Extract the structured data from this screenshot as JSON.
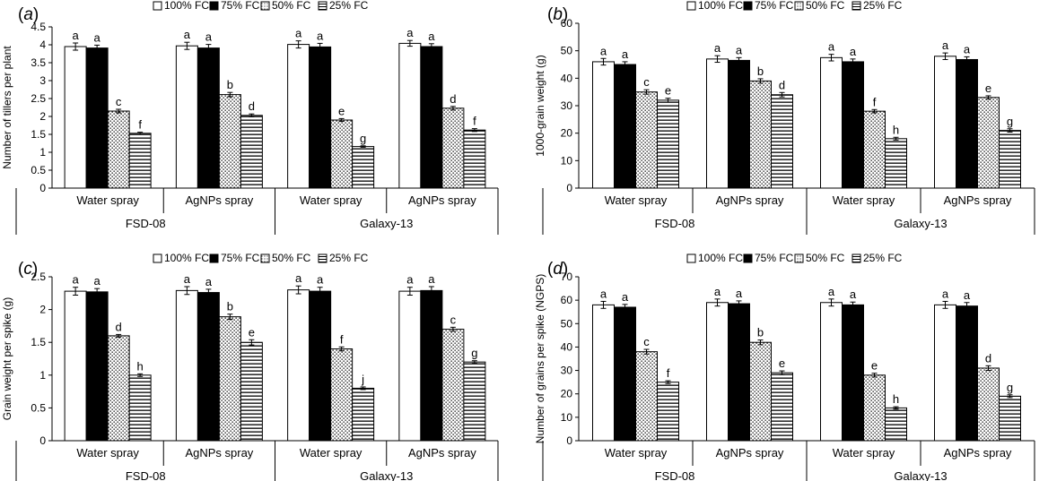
{
  "legend_labels": [
    "100% FC",
    "75% FC",
    "50% FC",
    "25% FC"
  ],
  "group_labels": [
    "Water spray",
    "AgNPs spray",
    "Water spray",
    "AgNPs spray"
  ],
  "cultivar_labels": [
    "FSD-08",
    "Galaxy-13"
  ],
  "chart_data": [
    {
      "type": "bar",
      "panel_label": "(a)",
      "ylabel": "Number of tillers per plant",
      "ylim": [
        0,
        4.5
      ],
      "yticks": [
        "0",
        "0.5",
        "1",
        "1.5",
        "2",
        "2.5",
        "3",
        "3.5",
        "4",
        "4.5"
      ],
      "yticks_values": [
        0,
        0.5,
        1,
        1.5,
        2,
        2.5,
        3,
        3.5,
        4,
        4.5
      ],
      "series": [
        {
          "name": "100% FC",
          "values": [
            3.95,
            3.97,
            4.01,
            4.04
          ],
          "errors": [
            0.1,
            0.1,
            0.1,
            0.08
          ],
          "letters": [
            "a",
            "a",
            "a",
            "a"
          ]
        },
        {
          "name": "75% FC",
          "values": [
            3.91,
            3.91,
            3.94,
            3.95
          ],
          "errors": [
            0.08,
            0.1,
            0.1,
            0.08
          ],
          "letters": [
            "a",
            "a",
            "a",
            "a"
          ]
        },
        {
          "name": "50% FC",
          "values": [
            2.15,
            2.61,
            1.9,
            2.23
          ],
          "errors": [
            0.05,
            0.06,
            0.04,
            0.05
          ],
          "letters": [
            "c",
            "b",
            "e",
            "d"
          ]
        },
        {
          "name": "25% FC",
          "values": [
            1.53,
            2.03,
            1.16,
            1.62
          ],
          "errors": [
            0.03,
            0.04,
            0.02,
            0.04
          ],
          "letters": [
            "f",
            "d",
            "g",
            "f"
          ]
        }
      ]
    },
    {
      "type": "bar",
      "panel_label": "(b)",
      "ylabel": "1000-grain weight (g)",
      "ylim": [
        0,
        60
      ],
      "yticks": [
        "0",
        "10",
        "20",
        "30",
        "40",
        "50",
        "60"
      ],
      "yticks_values": [
        0,
        10,
        20,
        30,
        40,
        50,
        60
      ],
      "series": [
        {
          "name": "100% FC",
          "values": [
            46,
            47,
            47.5,
            48
          ],
          "errors": [
            1.2,
            1.2,
            1.2,
            1.2
          ],
          "letters": [
            "a",
            "a",
            "a",
            "a"
          ]
        },
        {
          "name": "75% FC",
          "values": [
            45,
            46.5,
            46,
            46.8
          ],
          "errors": [
            1,
            1,
            1,
            1
          ],
          "letters": [
            "a",
            "a",
            "a",
            "a"
          ]
        },
        {
          "name": "50% FC",
          "values": [
            35,
            39,
            28,
            33
          ],
          "errors": [
            0.8,
            0.8,
            0.6,
            0.6
          ],
          "letters": [
            "c",
            "b",
            "f",
            "e"
          ]
        },
        {
          "name": "25% FC",
          "values": [
            32,
            34,
            18,
            21
          ],
          "errors": [
            0.7,
            0.8,
            0.5,
            0.6
          ],
          "letters": [
            "e",
            "d",
            "h",
            "g"
          ]
        }
      ]
    },
    {
      "type": "bar",
      "panel_label": "(c)",
      "ylabel": "Grain weight per spike (g)",
      "ylim": [
        0,
        2.5
      ],
      "yticks": [
        "0",
        "0.5",
        "1",
        "1.5",
        "2",
        "2.5"
      ],
      "yticks_values": [
        0,
        0.5,
        1,
        1.5,
        2,
        2.5
      ],
      "series": [
        {
          "name": "100% FC",
          "values": [
            2.28,
            2.29,
            2.3,
            2.28
          ],
          "errors": [
            0.06,
            0.06,
            0.06,
            0.06
          ],
          "letters": [
            "a",
            "a",
            "a",
            "a"
          ]
        },
        {
          "name": "75% FC",
          "values": [
            2.27,
            2.26,
            2.28,
            2.29
          ],
          "errors": [
            0.05,
            0.05,
            0.06,
            0.06
          ],
          "letters": [
            "a",
            "a",
            "a",
            "a"
          ]
        },
        {
          "name": "50% FC",
          "values": [
            1.6,
            1.89,
            1.4,
            1.7
          ],
          "errors": [
            0.02,
            0.04,
            0.03,
            0.03
          ],
          "letters": [
            "d",
            "b",
            "f",
            "c"
          ]
        },
        {
          "name": "25% FC",
          "values": [
            1.0,
            1.5,
            0.8,
            1.2
          ],
          "errors": [
            0.02,
            0.04,
            0.02,
            0.02
          ],
          "letters": [
            "h",
            "e",
            "j",
            "g"
          ]
        }
      ]
    },
    {
      "type": "bar",
      "panel_label": "(d)",
      "ylabel": "Number of grains per spike (NGPS)",
      "ylim": [
        0,
        70
      ],
      "yticks": [
        "0",
        "10",
        "20",
        "30",
        "40",
        "50",
        "60",
        "70"
      ],
      "yticks_values": [
        0,
        10,
        20,
        30,
        40,
        50,
        60,
        70
      ],
      "series": [
        {
          "name": "100% FC",
          "values": [
            58,
            59,
            59,
            58
          ],
          "errors": [
            1.5,
            1.5,
            1.5,
            1.5
          ],
          "letters": [
            "a",
            "a",
            "a",
            "a"
          ]
        },
        {
          "name": "75% FC",
          "values": [
            57,
            58.5,
            58,
            57.5
          ],
          "errors": [
            1.2,
            1.2,
            1.2,
            1.5
          ],
          "letters": [
            "a",
            "a",
            "a",
            "a"
          ]
        },
        {
          "name": "50% FC",
          "values": [
            38,
            42,
            28,
            31
          ],
          "errors": [
            1,
            1,
            0.8,
            1
          ],
          "letters": [
            "c",
            "b",
            "e",
            "d"
          ]
        },
        {
          "name": "25% FC",
          "values": [
            25,
            29,
            14,
            19
          ],
          "errors": [
            0.6,
            0.8,
            0.5,
            0.6
          ],
          "letters": [
            "f",
            "e",
            "h",
            "g"
          ]
        }
      ]
    }
  ]
}
